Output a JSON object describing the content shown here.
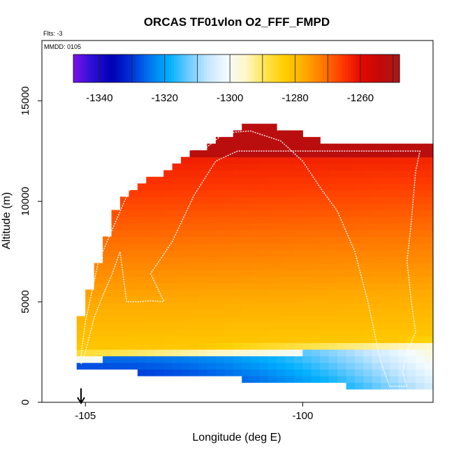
{
  "chart_data": {
    "type": "heatmap",
    "title": "ORCAS TF01vlon O2_FFF_FMPD",
    "subtitle_flts": "Flts: -3",
    "subtitle_mmdd": "MMDD: 0105",
    "xlabel": "Longitude (deg E)",
    "ylabel": "Altitude (m)",
    "xlim": [
      -106,
      -97
    ],
    "ylim": [
      0,
      18000
    ],
    "x_ticks": [
      -105,
      -100
    ],
    "x_tick_labels": [
      "-105",
      "-100"
    ],
    "y_ticks": [
      0,
      5000,
      10000,
      15000
    ],
    "y_tick_labels": [
      "0",
      "5000",
      "10000",
      "15000"
    ],
    "colorbar": {
      "min": -1348,
      "max": -1248,
      "ticks": [
        -1340,
        -1320,
        -1300,
        -1280,
        -1260
      ],
      "tick_labels": [
        "-1340",
        "-1320",
        "-1300",
        "-1280",
        "-1260"
      ],
      "colors": [
        "#7a12e8",
        "#2c0fd6",
        "#0000b4",
        "#0030d8",
        "#0078ee",
        "#00b0ff",
        "#6ccbff",
        "#c4e6ff",
        "#f2fbff",
        "#fff7c6",
        "#ffe450",
        "#ffcf00",
        "#ffac00",
        "#ff7800",
        "#ff3a00",
        "#e40800",
        "#c20a0a",
        "#a81818"
      ]
    },
    "cross_section": {
      "lon_range": [
        -105.2,
        -97
      ],
      "alt_range": [
        400,
        13700
      ],
      "core_value_low": -1282,
      "core_value_high": -1262,
      "top_value": -1252,
      "boundary_layer_value": -1338
    },
    "flight_track": {
      "color": "#ffffff",
      "points": [
        [
          -105.1,
          1900
        ],
        [
          -105.0,
          2500
        ],
        [
          -104.8,
          4200
        ],
        [
          -104.6,
          5300
        ],
        [
          -104.4,
          6300
        ],
        [
          -104.2,
          7500
        ],
        [
          -104.05,
          5000
        ],
        [
          -103.8,
          5000
        ],
        [
          -103.5,
          5050
        ],
        [
          -103.2,
          5000
        ],
        [
          -103.2,
          5050
        ],
        [
          -103.5,
          6400
        ],
        [
          -103.0,
          8000
        ],
        [
          -102.5,
          10300
        ],
        [
          -102.0,
          12000
        ],
        [
          -101.5,
          12500
        ],
        [
          -100.5,
          12500
        ],
        [
          -99.5,
          12500
        ],
        [
          -98.5,
          12500
        ],
        [
          -97.3,
          12500
        ],
        [
          -97.4,
          11500
        ],
        [
          -97.5,
          9000
        ],
        [
          -97.6,
          7000
        ],
        [
          -97.5,
          5000
        ],
        [
          -97.4,
          3500
        ],
        [
          -97.6,
          2500
        ],
        [
          -97.7,
          1500
        ],
        [
          -97.6,
          800
        ],
        [
          -98.0,
          800
        ],
        [
          -98.2,
          2000
        ],
        [
          -98.5,
          5000
        ],
        [
          -98.8,
          7500
        ],
        [
          -99.2,
          9500
        ],
        [
          -99.6,
          10700
        ],
        [
          -100.0,
          12000
        ],
        [
          -100.5,
          13000
        ],
        [
          -101.2,
          13500
        ],
        [
          -101.8,
          13400
        ],
        [
          -102.2,
          12700
        ],
        [
          -103.2,
          12300
        ],
        [
          -104.0,
          10500
        ],
        [
          -104.7,
          7000
        ],
        [
          -105.0,
          4000
        ],
        [
          -105.1,
          2300
        ]
      ]
    },
    "annotation_arrow": {
      "lon": -105.1,
      "label": ""
    }
  }
}
